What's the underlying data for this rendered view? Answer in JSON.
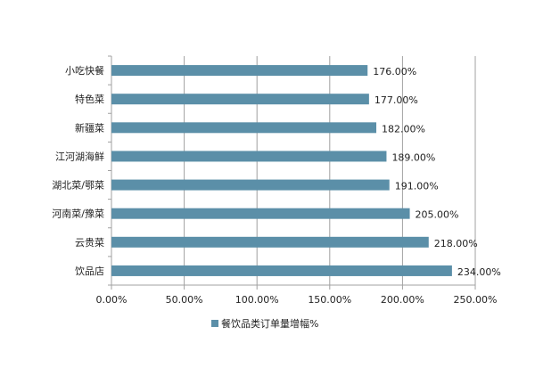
{
  "chart_data": {
    "type": "bar",
    "orientation": "horizontal",
    "categories": [
      "小吃快餐",
      "特色菜",
      "新疆菜",
      "江河湖海鲜",
      "湖北菜/鄂菜",
      "河南菜/豫菜",
      "云贵菜",
      "饮品店"
    ],
    "series": [
      {
        "name": "餐饮品类订单量增幅%",
        "values": [
          176,
          177,
          182,
          189,
          191,
          205,
          218,
          234
        ],
        "labels": [
          "176.00%",
          "177.00%",
          "182.00%",
          "189.00%",
          "191.00%",
          "205.00%",
          "218.00%",
          "234.00%"
        ]
      }
    ],
    "xlim": [
      0,
      250
    ],
    "xticks": [
      0,
      50,
      100,
      150,
      200,
      250
    ],
    "xtick_labels": [
      "0.00%",
      "50.00%",
      "100.00%",
      "150.00%",
      "200.00%",
      "250.00%"
    ],
    "grid": "vertical",
    "legend_position": "bottom",
    "bar_color": "#5b8fa8",
    "grid_color": "#a0a0a0"
  }
}
